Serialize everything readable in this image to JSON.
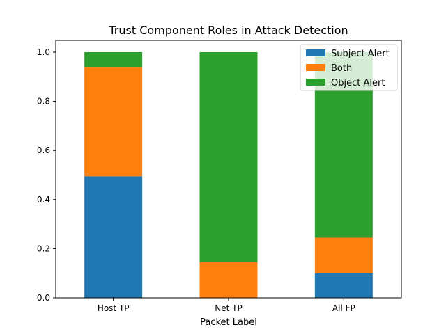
{
  "chart_data": {
    "type": "bar",
    "stacked": true,
    "title": "Trust Component Roles in Attack Detection",
    "xlabel": "Packet Label",
    "ylabel": "",
    "categories": [
      "Host TP",
      "Net TP",
      "All FP"
    ],
    "ylim": [
      0,
      1.0
    ],
    "yticks": [
      "0.0",
      "0.2",
      "0.4",
      "0.6",
      "0.8",
      "1.0"
    ],
    "grid": false,
    "legend_position": "top-right",
    "series": [
      {
        "name": "Subject Alert",
        "color": "#1f77b4",
        "values": [
          0.495,
          0.0,
          0.1
        ]
      },
      {
        "name": "Both",
        "color": "#ff7f0e",
        "values": [
          0.445,
          0.145,
          0.145
        ]
      },
      {
        "name": "Object Alert",
        "color": "#2ca02c",
        "values": [
          0.06,
          0.855,
          0.755
        ]
      }
    ]
  }
}
